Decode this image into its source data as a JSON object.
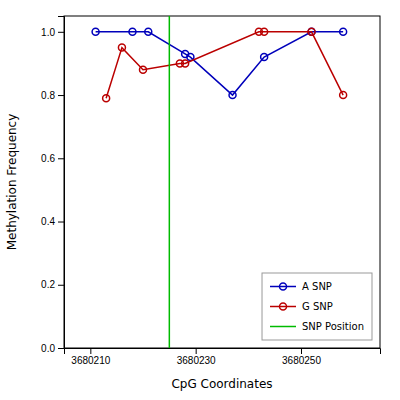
{
  "chart_data": {
    "type": "line",
    "title": "",
    "xlabel": "CpG Coordinates",
    "ylabel": "Methylation Frequency",
    "series": [
      {
        "name": "A SNP",
        "color": "#0000BB",
        "marker": "circle",
        "x": [
          3680211,
          3680218,
          3680221,
          3680228,
          3680229,
          3680237,
          3680243,
          3680252,
          3680258
        ],
        "values": [
          1.0,
          1.0,
          1.0,
          0.93,
          0.92,
          0.8,
          0.92,
          1.0,
          1.0
        ]
      },
      {
        "name": "G SNP",
        "color": "#BB0000",
        "marker": "circle",
        "x": [
          3680213,
          3680216,
          3680220,
          3680227,
          3680228,
          3680242,
          3680243,
          3680252,
          3680258
        ],
        "values": [
          0.79,
          0.95,
          0.88,
          0.9,
          0.9,
          1.0,
          1.0,
          1.0,
          0.8
        ]
      },
      {
        "name": "SNP Position",
        "type": "vline",
        "color": "#00BB00",
        "x": [
          3680225
        ]
      }
    ],
    "xlim": [
      3680205,
      3680265
    ],
    "xticks": [
      3680210,
      3680230,
      3680250
    ],
    "ylim": [
      0.0,
      1.05
    ],
    "yticks": [
      {
        "value": 0,
        "label": "0.0"
      },
      0.2,
      0.4,
      0.6,
      0.8,
      {
        "value": 1,
        "label": "1.0"
      }
    ],
    "grid": false,
    "legend": "lower right"
  }
}
